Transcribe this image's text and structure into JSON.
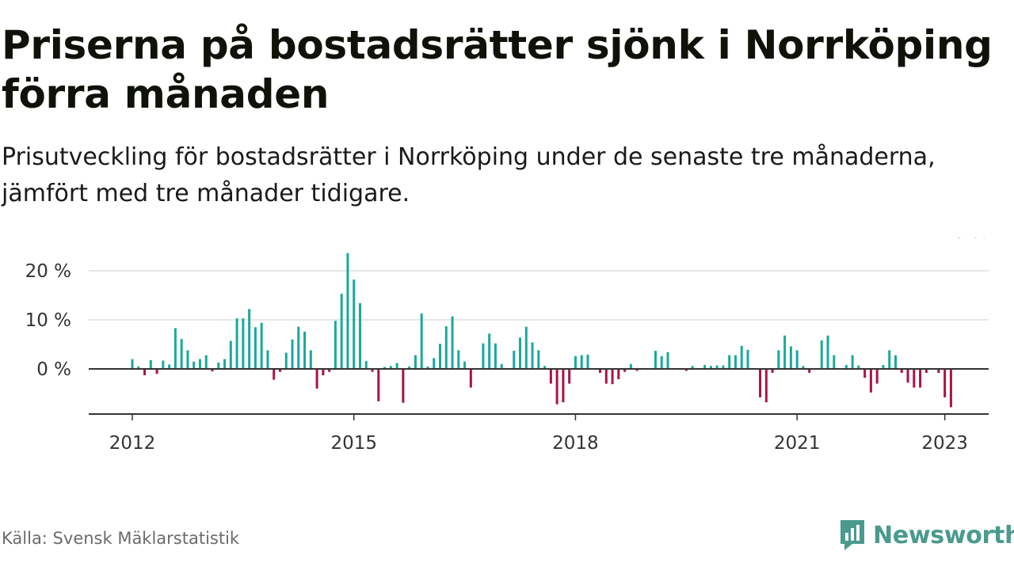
{
  "title": "Priserna på bostadsrätter sjönk i Norrköping förra månaden",
  "subtitle": "Prisutveckling för bostadsrätter i Norrköping under de senaste tre månaderna, jämfört med tre månader tidigare.",
  "source": "Källa: Svensk Mäklarstatistik",
  "brand": "Newsworthy",
  "colors": {
    "positive": "#1aa99b",
    "negative": "#a8134a",
    "grid": "#dddddd",
    "axis": "#333333",
    "brand": "#4a9a8e"
  },
  "chart_data": {
    "type": "bar",
    "title": "",
    "xlabel": "",
    "ylabel": "",
    "unit": "%",
    "x_start": {
      "year": 2012,
      "month": 1
    },
    "ylim": [
      -9,
      24
    ],
    "y_ticks": [
      20,
      10,
      0
    ],
    "y_tick_labels": [
      "20 %",
      "10 %",
      "0 %"
    ],
    "x_ticks": [
      2012,
      2015,
      2018,
      2021,
      2023
    ],
    "x_tick_labels": [
      "2012",
      "2015",
      "2018",
      "2021",
      "2023"
    ],
    "grid": true,
    "annotation": {
      "text": "−8 %",
      "index": 135
    },
    "values": [
      2,
      0.5,
      -1.3,
      1.8,
      -1,
      1.7,
      0.9,
      8.3,
      6.1,
      3.8,
      1.5,
      2,
      2.8,
      -0.5,
      1.3,
      2,
      5.7,
      10.3,
      10.3,
      12.2,
      8.5,
      9.4,
      3.8,
      -2.2,
      -0.6,
      3.3,
      6,
      8.6,
      7.6,
      3.8,
      -4,
      -1.3,
      -0.6,
      9.8,
      15.3,
      23.6,
      18.2,
      13.4,
      1.6,
      -0.6,
      -6.6,
      0.4,
      0.6,
      1.2,
      -6.9,
      0.5,
      2.8,
      11.3,
      0.5,
      2.2,
      5.1,
      8.7,
      10.7,
      3.8,
      1.5,
      -3.8,
      0,
      5.2,
      7.2,
      5.2,
      1,
      0,
      3.7,
      6.4,
      8.6,
      5.4,
      3.8,
      0.6,
      -3,
      -7.2,
      -6.8,
      -3,
      2.6,
      2.8,
      2.9,
      0,
      -0.8,
      -3,
      -3.1,
      -2.1,
      -0.6,
      1,
      -0.4,
      0,
      0,
      3.7,
      2.6,
      3.4,
      0,
      0,
      -0.4,
      0.6,
      0,
      0.8,
      0.6,
      0.7,
      0.7,
      2.8,
      2.8,
      4.7,
      3.9,
      0,
      -5.8,
      -6.8,
      -0.8,
      3.8,
      6.8,
      4.6,
      3.8,
      0.6,
      -0.8,
      0,
      5.8,
      6.8,
      2.8,
      0,
      0.8,
      2.8,
      0.7,
      -1.8,
      -4.8,
      -3,
      0.8,
      3.8,
      2.8,
      -0.8,
      -2.8,
      -3.8,
      -3.8,
      -0.8,
      0,
      -0.8,
      -5.8,
      -7.8
    ]
  }
}
